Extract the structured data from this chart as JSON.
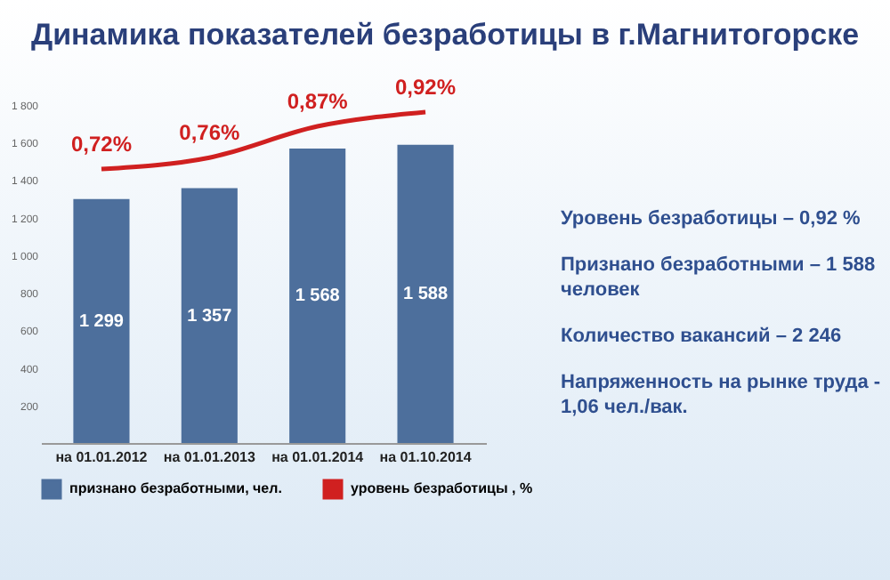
{
  "chart_data": {
    "type": "bar",
    "title": "Динамика показателей безработицы в г.Магнитогорске",
    "categories": [
      "на 01.01.2012",
      "на 01.01.2013",
      "на 01.01.2014",
      "на 01.10.2014"
    ],
    "series": [
      {
        "name": "признано безработными, чел.",
        "color": "#4d6f9c",
        "values": [
          1299,
          1357,
          1568,
          1588
        ],
        "value_labels": [
          "1 299",
          "1 357",
          "1 568",
          "1 588"
        ]
      },
      {
        "name": "уровень безработицы , %",
        "type": "line",
        "axis": "y2",
        "color": "#d02020",
        "values": [
          0.72,
          0.76,
          0.87,
          0.92
        ],
        "value_labels": [
          "0,72%",
          "0,76%",
          "0,87%",
          "0,92%"
        ]
      }
    ],
    "ylim": [
      0,
      1800
    ],
    "yticks": [
      {
        "value": 200,
        "label": "200"
      },
      {
        "value": 400,
        "label": "400"
      },
      {
        "value": 600,
        "label": "600"
      },
      {
        "value": 800,
        "label": "800"
      },
      {
        "value": 1000,
        "label": "1 000"
      },
      {
        "value": 1200,
        "label": "1 200"
      },
      {
        "value": 1400,
        "label": "1 400"
      },
      {
        "value": 1600,
        "label": "1 600"
      },
      {
        "value": 1800,
        "label": "1 800"
      }
    ],
    "tick_labels": "y",
    "legend": "bottom",
    "grid": false,
    "marker": "none",
    "annotations": [
      "Уровень безработицы – 0,92 %",
      "Признано безработными – 1 588 человек",
      "Количество вакансий – 2 246",
      "Напряженность на рынке труда - 1,06 чел./вак."
    ]
  }
}
